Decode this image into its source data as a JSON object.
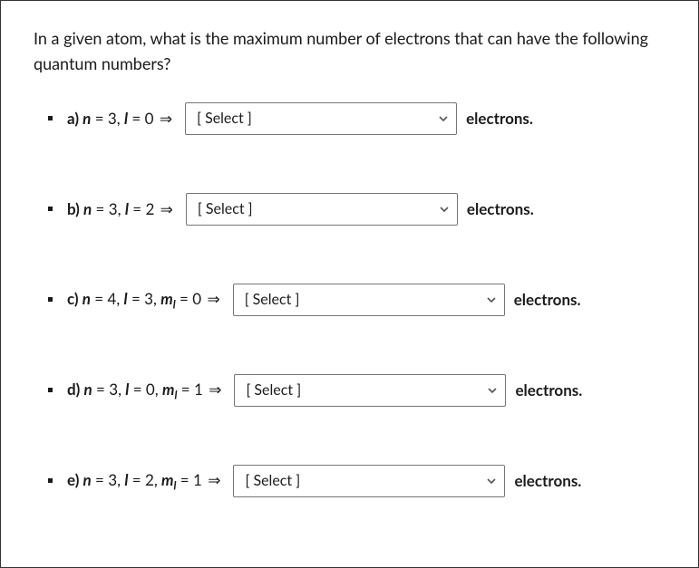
{
  "question": {
    "text": "In a given atom, what is the maximum number of electrons that can have the following quantum numbers?"
  },
  "placeholder": "[ Select ]",
  "after_label": "electrons.",
  "items": [
    {
      "letter": "a)",
      "expr_html": "<span class='ivar'>n</span> = 3, <span class='ivar'>l</span> = 0",
      "select_width": 300
    },
    {
      "letter": "b)",
      "expr_html": "<span class='ivar'>n</span> = 3, <span class='ivar'>l</span> = 2",
      "select_width": 300
    },
    {
      "letter": "c)",
      "expr_html": "<span class='ivar'>n</span> = 4, <span class='ivar'>l</span> = 3, <span class='ivar'>m</span><span class='sub'>l</span> = 0",
      "select_width": 300
    },
    {
      "letter": "d)",
      "expr_html": "<span class='ivar'>n</span> = 3, <span class='ivar'>l</span> = 0, <span class='ivar'>m</span><span class='sub'>l</span> = 1",
      "select_width": 300
    },
    {
      "letter": "e)",
      "expr_html": "<span class='ivar'>n</span> = 3, <span class='ivar'>l</span> = 2, <span class='ivar'>m</span><span class='sub'>l</span> = 1",
      "select_width": 300
    }
  ],
  "colors": {
    "text": "#1a1a1a",
    "border": "#767676",
    "background": "#ffffff"
  }
}
